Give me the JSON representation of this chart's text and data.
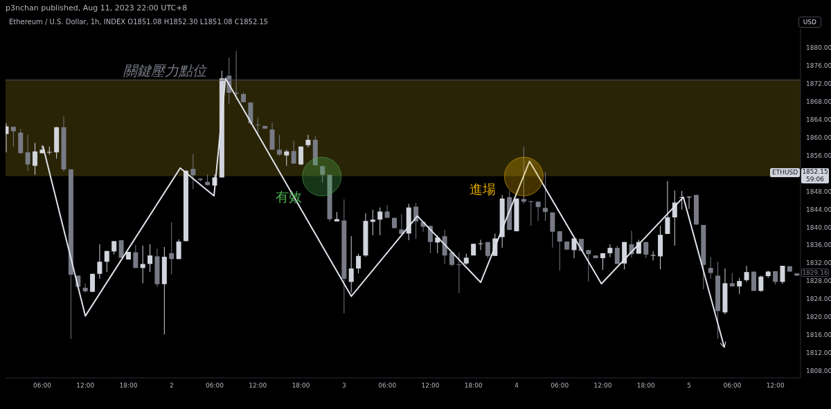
{
  "chart_data": {
    "type": "candlestick",
    "subtitle": "p3nchan published, Aug 11, 2023 22:00 UTC+8",
    "title": "Ethereum / U.S. Dollar, 1h, INDEX  O1851.08  H1852.30  L1851.08  C1852.15",
    "x": [
      "2023-08-01T01:00",
      "2023-08-01T02:00",
      "2023-08-01T03:00",
      "2023-08-01T04:00",
      "2023-08-01T05:00",
      "2023-08-01T06:00",
      "2023-08-01T07:00",
      "2023-08-01T08:00",
      "2023-08-01T09:00",
      "2023-08-01T10:00",
      "2023-08-01T11:00",
      "2023-08-01T12:00",
      "2023-08-01T13:00",
      "2023-08-01T14:00",
      "2023-08-01T15:00",
      "2023-08-01T16:00",
      "2023-08-01T17:00",
      "2023-08-01T18:00",
      "2023-08-01T19:00",
      "2023-08-01T20:00",
      "2023-08-01T21:00",
      "2023-08-01T22:00",
      "2023-08-01T23:00",
      "2023-08-02T00:00",
      "2023-08-02T01:00",
      "2023-08-02T02:00",
      "2023-08-02T03:00",
      "2023-08-02T04:00",
      "2023-08-02T05:00",
      "2023-08-02T06:00",
      "2023-08-02T07:00",
      "2023-08-02T08:00",
      "2023-08-02T09:00",
      "2023-08-02T10:00",
      "2023-08-02T11:00",
      "2023-08-02T12:00",
      "2023-08-02T13:00",
      "2023-08-02T14:00",
      "2023-08-02T15:00",
      "2023-08-02T16:00",
      "2023-08-02T17:00",
      "2023-08-02T18:00",
      "2023-08-02T19:00",
      "2023-08-02T20:00",
      "2023-08-02T21:00",
      "2023-08-02T22:00",
      "2023-08-02T23:00",
      "2023-08-03T00:00",
      "2023-08-03T01:00",
      "2023-08-03T02:00",
      "2023-08-03T03:00",
      "2023-08-03T04:00",
      "2023-08-03T05:00",
      "2023-08-03T06:00",
      "2023-08-03T07:00",
      "2023-08-03T08:00",
      "2023-08-03T09:00",
      "2023-08-03T10:00",
      "2023-08-03T11:00",
      "2023-08-03T12:00",
      "2023-08-03T13:00",
      "2023-08-03T14:00",
      "2023-08-03T15:00",
      "2023-08-03T16:00",
      "2023-08-03T17:00",
      "2023-08-03T18:00",
      "2023-08-03T19:00",
      "2023-08-03T20:00",
      "2023-08-03T21:00",
      "2023-08-03T22:00",
      "2023-08-03T23:00",
      "2023-08-04T00:00",
      "2023-08-04T01:00",
      "2023-08-04T02:00",
      "2023-08-04T03:00",
      "2023-08-04T04:00",
      "2023-08-04T05:00",
      "2023-08-04T06:00",
      "2023-08-04T07:00",
      "2023-08-04T08:00",
      "2023-08-04T09:00",
      "2023-08-04T10:00",
      "2023-08-04T11:00",
      "2023-08-04T12:00",
      "2023-08-04T13:00",
      "2023-08-04T14:00",
      "2023-08-04T15:00",
      "2023-08-04T16:00",
      "2023-08-04T17:00",
      "2023-08-04T18:00",
      "2023-08-04T19:00",
      "2023-08-04T20:00",
      "2023-08-04T21:00",
      "2023-08-04T22:00",
      "2023-08-04T23:00",
      "2023-08-05T00:00",
      "2023-08-05T01:00",
      "2023-08-05T02:00",
      "2023-08-05T03:00",
      "2023-08-05T04:00",
      "2023-08-05T05:00",
      "2023-08-05T06:00",
      "2023-08-05T07:00",
      "2023-08-05T08:00",
      "2023-08-05T09:00",
      "2023-08-05T10:00",
      "2023-08-05T11:00",
      "2023-08-05T12:00",
      "2023-08-05T13:00",
      "2023-08-05T14:00",
      "2023-08-05T15:00"
    ],
    "ohlc": [
      [
        1860.8,
        1863.2,
        1856.7,
        1862.5
      ],
      [
        1862.4,
        1862.4,
        1858.0,
        1861.4
      ],
      [
        1861.1,
        1861.9,
        1856.5,
        1856.5
      ],
      [
        1856.7,
        1860.6,
        1852.6,
        1854.0
      ],
      [
        1853.7,
        1858.8,
        1851.7,
        1856.9
      ],
      [
        1856.5,
        1858.3,
        1856.5,
        1857.3
      ],
      [
        1856.7,
        1858.0,
        1856.2,
        1856.8
      ],
      [
        1856.7,
        1862.4,
        1855.3,
        1862.3
      ],
      [
        1862.3,
        1864.7,
        1852.4,
        1852.9
      ],
      [
        1852.9,
        1852.9,
        1815.1,
        1829.4
      ],
      [
        1829.2,
        1829.2,
        1826.4,
        1826.7
      ],
      [
        1826.5,
        1827.5,
        1825.4,
        1825.7
      ],
      [
        1825.6,
        1829.6,
        1825.5,
        1829.6
      ],
      [
        1829.6,
        1836.2,
        1828.5,
        1832.3
      ],
      [
        1832.3,
        1834.7,
        1830.0,
        1834.7
      ],
      [
        1834.6,
        1836.9,
        1833.9,
        1836.9
      ],
      [
        1837.1,
        1837.1,
        1833.1,
        1833.2
      ],
      [
        1832.8,
        1834.5,
        1832.8,
        1834.5
      ],
      [
        1834.4,
        1836.0,
        1830.9,
        1830.9
      ],
      [
        1830.9,
        1835.9,
        1827.5,
        1831.8
      ],
      [
        1831.8,
        1836.2,
        1830.0,
        1833.7
      ],
      [
        1833.5,
        1835.2,
        1826.7,
        1827.3
      ],
      [
        1827.3,
        1835.6,
        1816.1,
        1833.4
      ],
      [
        1834.2,
        1841.1,
        1829.5,
        1832.9
      ],
      [
        1832.9,
        1837.3,
        1832.9,
        1836.8
      ],
      [
        1836.9,
        1852.7,
        1836.9,
        1852.6
      ],
      [
        1853.0,
        1856.3,
        1848.5,
        1851.6
      ],
      [
        1850.8,
        1851.0,
        1850.2,
        1850.5
      ],
      [
        1850.1,
        1851.8,
        1849.3,
        1849.4
      ],
      [
        1849.3,
        1851.8,
        1849.3,
        1851.1
      ],
      [
        1851.1,
        1874.9,
        1851.1,
        1873.2
      ],
      [
        1873.8,
        1877.8,
        1867.5,
        1870.0
      ],
      [
        1870.0,
        1879.3,
        1868.5,
        1869.8
      ],
      [
        1869.7,
        1870.0,
        1867.9,
        1867.9
      ],
      [
        1867.8,
        1867.9,
        1862.9,
        1863.2
      ],
      [
        1862.9,
        1864.4,
        1860.3,
        1862.8
      ],
      [
        1862.6,
        1862.6,
        1862.0,
        1862.0
      ],
      [
        1861.8,
        1863.3,
        1857.3,
        1857.3
      ],
      [
        1857.3,
        1860.6,
        1855.9,
        1856.2
      ],
      [
        1856.0,
        1857.3,
        1853.7,
        1856.9
      ],
      [
        1857.0,
        1859.3,
        1854.2,
        1854.2
      ],
      [
        1854.0,
        1858.0,
        1853.9,
        1858.0
      ],
      [
        1858.3,
        1860.6,
        1857.8,
        1859.5
      ],
      [
        1859.5,
        1860.3,
        1853.8,
        1853.8
      ],
      [
        1853.6,
        1853.8,
        1849.9,
        1851.7
      ],
      [
        1851.7,
        1851.7,
        1841.3,
        1841.8
      ],
      [
        1841.3,
        1843.4,
        1841.3,
        1841.8
      ],
      [
        1841.5,
        1846.2,
        1820.8,
        1828.5
      ],
      [
        1827.8,
        1838.0,
        1825.4,
        1830.8
      ],
      [
        1830.8,
        1834.1,
        1829.7,
        1833.6
      ],
      [
        1833.7,
        1843.1,
        1833.4,
        1841.4
      ],
      [
        1841.2,
        1843.9,
        1838.2,
        1841.7
      ],
      [
        1841.7,
        1844.4,
        1838.2,
        1843.5
      ],
      [
        1843.5,
        1844.9,
        1842.1,
        1842.1
      ],
      [
        1842.1,
        1842.1,
        1839.8,
        1839.8
      ],
      [
        1839.5,
        1842.9,
        1838.5,
        1838.5
      ],
      [
        1838.6,
        1845.2,
        1837.1,
        1844.4
      ],
      [
        1844.6,
        1845.4,
        1837.4,
        1841.3
      ],
      [
        1841.2,
        1841.2,
        1839.0,
        1840.1
      ],
      [
        1840.3,
        1840.3,
        1834.2,
        1836.7
      ],
      [
        1836.6,
        1838.2,
        1834.2,
        1837.7
      ],
      [
        1838.0,
        1839.4,
        1831.8,
        1833.7
      ],
      [
        1834.4,
        1834.4,
        1831.3,
        1831.6
      ],
      [
        1831.7,
        1834.4,
        1825.3,
        1831.6
      ],
      [
        1831.9,
        1834.1,
        1831.6,
        1833.2
      ],
      [
        1833.7,
        1836.3,
        1833.7,
        1836.3
      ],
      [
        1836.3,
        1837.2,
        1834.9,
        1836.4
      ],
      [
        1836.7,
        1836.7,
        1833.1,
        1833.6
      ],
      [
        1833.6,
        1838.6,
        1833.6,
        1837.5
      ],
      [
        1837.8,
        1847.2,
        1835.4,
        1846.4
      ],
      [
        1846.7,
        1848.1,
        1839.4,
        1839.4
      ],
      [
        1839.1,
        1846.4,
        1839.1,
        1846.4
      ],
      [
        1846.3,
        1858.0,
        1845.2,
        1845.7
      ],
      [
        1845.8,
        1845.9,
        1840.3,
        1845.7
      ],
      [
        1845.7,
        1845.7,
        1841.4,
        1844.5
      ],
      [
        1844.3,
        1852.3,
        1841.4,
        1843.4
      ],
      [
        1843.3,
        1843.3,
        1835.4,
        1839.0
      ],
      [
        1839.1,
        1839.1,
        1830.3,
        1836.8
      ],
      [
        1836.8,
        1836.8,
        1835.0,
        1835.0
      ],
      [
        1834.9,
        1837.5,
        1833.1,
        1837.5
      ],
      [
        1837.4,
        1837.4,
        1834.7,
        1834.7
      ],
      [
        1834.9,
        1834.9,
        1827.9,
        1834.0
      ],
      [
        1833.7,
        1833.7,
        1833.1,
        1833.1
      ],
      [
        1833.1,
        1834.2,
        1830.5,
        1834.2
      ],
      [
        1834.2,
        1836.2,
        1833.3,
        1835.4
      ],
      [
        1835.4,
        1835.9,
        1831.8,
        1831.8
      ],
      [
        1831.9,
        1836.7,
        1830.6,
        1836.7
      ],
      [
        1836.2,
        1839.2,
        1833.2,
        1834.0
      ],
      [
        1834.1,
        1837.2,
        1834.1,
        1836.7
      ],
      [
        1836.7,
        1836.7,
        1833.1,
        1833.9
      ],
      [
        1833.7,
        1834.6,
        1832.6,
        1833.8
      ],
      [
        1833.5,
        1840.3,
        1830.6,
        1838.3
      ],
      [
        1838.5,
        1850.3,
        1838.5,
        1842.2
      ],
      [
        1842.2,
        1848.2,
        1835.9,
        1845.5
      ],
      [
        1846.6,
        1848.1,
        1843.9,
        1846.7
      ],
      [
        1846.7,
        1846.9,
        1844.1,
        1846.8
      ],
      [
        1847.2,
        1847.2,
        1840.6,
        1840.6
      ],
      [
        1840.5,
        1840.5,
        1826.2,
        1831.6
      ],
      [
        1830.9,
        1833.3,
        1828.5,
        1829.8
      ],
      [
        1829.2,
        1832.3,
        1815.1,
        1821.3
      ],
      [
        1821.0,
        1830.8,
        1820.6,
        1827.5
      ],
      [
        1827.5,
        1829.8,
        1826.8,
        1826.8
      ],
      [
        1826.8,
        1828.7,
        1825.1,
        1828.0
      ],
      [
        1828.2,
        1831.4,
        1827.8,
        1830.0
      ],
      [
        1830.1,
        1830.1,
        1825.8,
        1825.8
      ],
      [
        1825.8,
        1829.2,
        1825.6,
        1829.0
      ],
      [
        1829.1,
        1830.3,
        1828.7,
        1830.1
      ],
      [
        1830.2,
        1830.2,
        1827.2,
        1827.8
      ],
      [
        1827.8,
        1831.4,
        1827.4,
        1831.4
      ],
      [
        1831.3,
        1831.3,
        1830.1,
        1830.1
      ],
      [
        1829.7,
        1829.7,
        1829.2,
        1829.2
      ]
    ],
    "colors": [
      "#d1d4dc",
      "#787b86",
      "#787b86",
      "#787b86",
      "#d1d4dc",
      "#d1d4dc",
      "#d1d4dc",
      "#d1d4dc",
      "#787b86",
      "#787b86",
      "#787b86",
      "#787b86",
      "#d1d4dc",
      "#d1d4dc",
      "#d1d4dc",
      "#d1d4dc",
      "#787b86",
      "#d1d4dc",
      "#787b86",
      "#d1d4dc",
      "#d1d4dc",
      "#787b86",
      "#d1d4dc",
      "#787b86",
      "#d1d4dc",
      "#d1d4dc",
      "#787b86",
      "#787b86",
      "#787b86",
      "#d1d4dc",
      "#d1d4dc",
      "#787b86",
      "#787b86",
      "#787b86",
      "#787b86",
      "#787b86",
      "#787b86",
      "#787b86",
      "#787b86",
      "#d1d4dc",
      "#787b86",
      "#d1d4dc",
      "#d1d4dc",
      "#787b86",
      "#787b86",
      "#787b86",
      "#d1d4dc",
      "#787b86",
      "#d1d4dc",
      "#d1d4dc",
      "#d1d4dc",
      "#d1d4dc",
      "#d1d4dc",
      "#787b86",
      "#787b86",
      "#787b86",
      "#d1d4dc",
      "#787b86",
      "#787b86",
      "#787b86",
      "#d1d4dc",
      "#787b86",
      "#787b86",
      "#787b86",
      "#d1d4dc",
      "#d1d4dc",
      "#d1d4dc",
      "#787b86",
      "#d1d4dc",
      "#d1d4dc",
      "#787b86",
      "#d1d4dc",
      "#787b86",
      "#787b86",
      "#787b86",
      "#787b86",
      "#787b86",
      "#787b86",
      "#787b86",
      "#d1d4dc",
      "#787b86",
      "#787b86",
      "#787b86",
      "#d1d4dc",
      "#d1d4dc",
      "#787b86",
      "#d1d4dc",
      "#787b86",
      "#d1d4dc",
      "#787b86",
      "#d1d4dc",
      "#d1d4dc",
      "#d1d4dc",
      "#d1d4dc",
      "#d1d4dc",
      "#d1d4dc",
      "#787b86",
      "#787b86",
      "#787b86",
      "#787b86",
      "#d1d4dc",
      "#787b86",
      "#d1d4dc",
      "#d1d4dc",
      "#787b86",
      "#d1d4dc",
      "#d1d4dc",
      "#787b86",
      "#d1d4dc",
      "#787b86",
      "#787b86"
    ],
    "series": [
      {
        "type": "line",
        "color": "#e0e3eb",
        "x": [
          "2023-08-01T06:06",
          "2023-08-01T12:00",
          "2023-08-02T01:12",
          "2023-08-02T05:54",
          "2023-08-02T07:30",
          "2023-08-03T01:00",
          "2023-08-03T10:12",
          "2023-08-03T19:00",
          "2023-08-04T01:48",
          "2023-08-04T11:48",
          "2023-08-04T23:12",
          "2023-08-05T04:54"
        ],
        "values": [
          1858.1,
          1820.2,
          1853.2,
          1847.0,
          1873.2,
          1824.6,
          1842.5,
          1827.7,
          1854.7,
          1827.4,
          1846.7,
          1813.2
        ]
      }
    ],
    "xlim": [
      "2023-08-01T00:54",
      "2023-08-05T15:30"
    ],
    "xticks": [
      {
        "value": "2023-08-01T06:00",
        "label": "06:00"
      },
      {
        "value": "2023-08-01T12:00",
        "label": "12:00"
      },
      {
        "value": "2023-08-01T18:00",
        "label": "18:00"
      },
      {
        "value": "2023-08-02",
        "label": "2"
      },
      {
        "value": "2023-08-02T06:00",
        "label": "06:00"
      },
      {
        "value": "2023-08-02T12:00",
        "label": "12:00"
      },
      {
        "value": "2023-08-02T18:00",
        "label": "18:00"
      },
      {
        "value": "2023-08-03",
        "label": "3"
      },
      {
        "value": "2023-08-03T06:00",
        "label": "06:00"
      },
      {
        "value": "2023-08-03T12:00",
        "label": "12:00"
      },
      {
        "value": "2023-08-03T18:00",
        "label": "18:00"
      },
      {
        "value": "2023-08-04",
        "label": "4"
      },
      {
        "value": "2023-08-04T06:00",
        "label": "06:00"
      },
      {
        "value": "2023-08-04T12:00",
        "label": "12:00"
      },
      {
        "value": "2023-08-04T18:00",
        "label": "18:00"
      },
      {
        "value": "2023-08-05",
        "label": "5"
      },
      {
        "value": "2023-08-05T06:00",
        "label": "06:00"
      },
      {
        "value": "2023-08-05T12:00",
        "label": "12:00"
      }
    ],
    "ylim": [
      1806.4,
      1884.2
    ],
    "yticks": [
      {
        "value": 1808,
        "label": "1808.00"
      },
      {
        "value": 1812,
        "label": "1812.00"
      },
      {
        "value": 1816,
        "label": "1816.00"
      },
      {
        "value": 1820,
        "label": "1820.00"
      },
      {
        "value": 1824,
        "label": "1824.00"
      },
      {
        "value": 1828,
        "label": "1828.00"
      },
      {
        "value": 1832,
        "label": "1832.00"
      },
      {
        "value": 1836,
        "label": "1836.00"
      },
      {
        "value": 1840,
        "label": "1840.00"
      },
      {
        "value": 1844,
        "label": "1844.00"
      },
      {
        "value": 1848,
        "label": "1848.00"
      },
      {
        "value": 1856,
        "label": "1856.00"
      },
      {
        "value": 1860,
        "label": "1860.00"
      },
      {
        "value": 1864,
        "label": "1864.00"
      },
      {
        "value": 1868,
        "label": "1868.00"
      },
      {
        "value": 1872,
        "label": "1872.00"
      },
      {
        "value": 1876,
        "label": "1876.00"
      },
      {
        "value": 1880,
        "label": "1880.00"
      }
    ],
    "bands": [
      {
        "axis": "y",
        "from": 1851.4,
        "to": 1873.0,
        "color": "#2a2406"
      }
    ],
    "ref_lines": [
      {
        "axis": "y",
        "value": 1872.8,
        "label": "關鍵壓力點位",
        "color": "#434651"
      }
    ],
    "annotations": [
      "有效",
      "進場",
      "ETHUSD",
      "1852.15\n59:06",
      "1829.16",
      "USD"
    ],
    "grid": false,
    "legend": false
  }
}
